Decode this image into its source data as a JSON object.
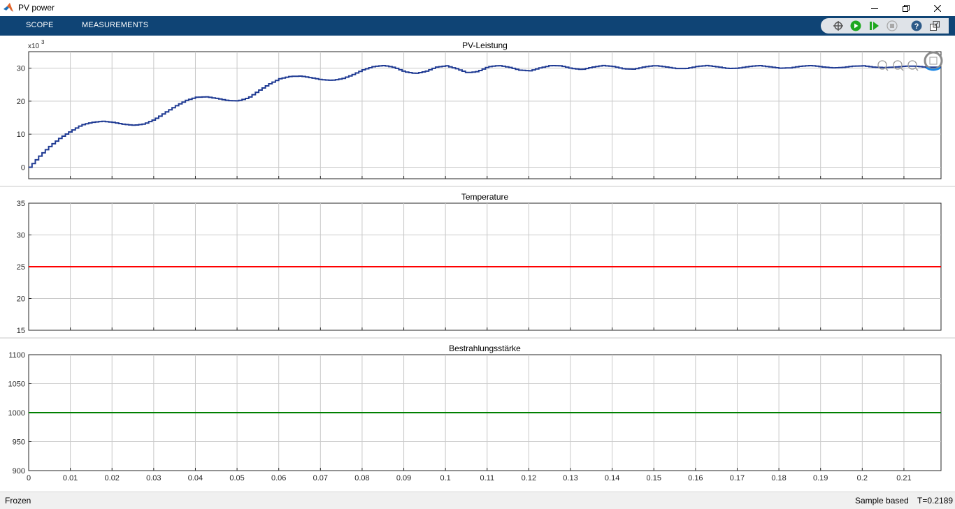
{
  "window": {
    "title": "PV power"
  },
  "toolstrip": {
    "tabs": [
      "SCOPE",
      "MEASUREMENTS"
    ],
    "tools": [
      "highlight-simulink-block-icon",
      "run-icon",
      "step-forward-icon",
      "stop-icon",
      "help-icon",
      "undock-icon"
    ]
  },
  "status": {
    "left": "Frozen",
    "mode": "Sample based",
    "time": "T=0.2189"
  },
  "colors": {
    "accent": "#0f4475",
    "power": "#1f3a93",
    "temperature": "#ff0000",
    "irradiance": "#008000"
  },
  "chart_data": [
    {
      "type": "line",
      "title": "PV-Leistung",
      "exponent_label": "x10",
      "exponent_sup": "3",
      "xlim": [
        0,
        0.2189
      ],
      "ylim": [
        -3.5,
        35
      ],
      "yticks": [
        "0",
        "10",
        "20",
        "30"
      ],
      "grid": true,
      "series": [
        {
          "x": [
            0,
            0.0025,
            0.005,
            0.0075,
            0.01,
            0.0125,
            0.015,
            0.0175,
            0.02,
            0.0225,
            0.025,
            0.0275,
            0.03,
            0.0325,
            0.035,
            0.0375,
            0.04,
            0.0425,
            0.045,
            0.0475,
            0.05,
            0.0525,
            0.055,
            0.0575,
            0.06,
            0.0625,
            0.065,
            0.0675,
            0.07,
            0.0725,
            0.075,
            0.0775,
            0.08,
            0.0825,
            0.085,
            0.0875,
            0.09,
            0.0925,
            0.095,
            0.0975,
            0.1,
            0.1025,
            0.105,
            0.1075,
            0.11,
            0.1125,
            0.115,
            0.1175,
            0.12,
            0.1225,
            0.125,
            0.1275,
            0.13,
            0.1325,
            0.135,
            0.1375,
            0.14,
            0.1425,
            0.145,
            0.1475,
            0.15,
            0.1525,
            0.155,
            0.1575,
            0.16,
            0.1625,
            0.165,
            0.1675,
            0.17,
            0.1725,
            0.175,
            0.1775,
            0.18,
            0.1825,
            0.185,
            0.1875,
            0.19,
            0.1925,
            0.195,
            0.1975,
            0.2,
            0.2025,
            0.205,
            0.2075,
            0.21,
            0.2125,
            0.215,
            0.2189
          ],
          "y": [
            0,
            3.5,
            6.5,
            9.0,
            11.0,
            12.8,
            13.6,
            13.9,
            13.6,
            13.0,
            12.7,
            13.1,
            14.5,
            16.5,
            18.5,
            20.2,
            21.2,
            21.3,
            20.8,
            20.2,
            20.1,
            21.0,
            23.2,
            25.2,
            26.8,
            27.5,
            27.6,
            27.1,
            26.5,
            26.3,
            26.8,
            28.0,
            29.5,
            30.5,
            30.8,
            30.2,
            28.9,
            28.4,
            29.0,
            30.3,
            30.7,
            29.8,
            28.6,
            29.0,
            30.4,
            30.8,
            30.3,
            29.4,
            29.2,
            30.1,
            30.8,
            30.7,
            29.9,
            29.6,
            30.3,
            30.8,
            30.5,
            29.8,
            29.7,
            30.4,
            30.8,
            30.4,
            29.9,
            29.9,
            30.5,
            30.8,
            30.4,
            29.9,
            30.0,
            30.5,
            30.8,
            30.4,
            30.0,
            30.1,
            30.6,
            30.8,
            30.4,
            30.1,
            30.2,
            30.6,
            30.7,
            30.3,
            30.2,
            30.3,
            30.6,
            30.6,
            30.3,
            30.3
          ]
        }
      ]
    },
    {
      "type": "line",
      "title": "Temperature",
      "xlim": [
        0,
        0.2189
      ],
      "ylim": [
        15,
        35
      ],
      "yticks": [
        "15",
        "20",
        "25",
        "30",
        "35"
      ],
      "grid": true,
      "series": [
        {
          "x": [
            0,
            0.2189
          ],
          "y": [
            25,
            25
          ]
        }
      ]
    },
    {
      "type": "line",
      "title": "Bestrahlungsstärke",
      "xlim": [
        0,
        0.2189
      ],
      "ylim": [
        900,
        1100
      ],
      "yticks": [
        "900",
        "950",
        "1000",
        "1050",
        "1100"
      ],
      "xticks": [
        "0",
        "0.01",
        "0.02",
        "0.03",
        "0.04",
        "0.05",
        "0.06",
        "0.07",
        "0.08",
        "0.09",
        "0.1",
        "0.11",
        "0.12",
        "0.13",
        "0.14",
        "0.15",
        "0.16",
        "0.17",
        "0.18",
        "0.19",
        "0.2",
        "0.21"
      ],
      "grid": true,
      "series": [
        {
          "x": [
            0,
            0.2189
          ],
          "y": [
            1000,
            1000
          ]
        }
      ]
    }
  ]
}
